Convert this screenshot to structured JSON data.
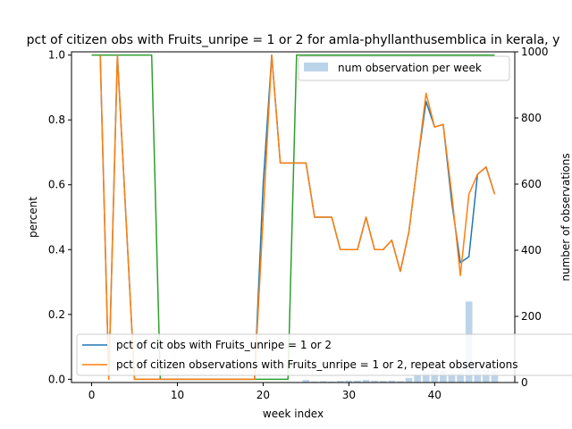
{
  "chart_data": {
    "type": "line",
    "title": "pct of citizen obs with Fruits_unripe = 1 or 2 for amla-phyllanthusemblica in kerala, y",
    "xlabel": "week index",
    "ylabel": "percent",
    "ylabel_right": "number of observations",
    "xlim": [
      -2.35,
      49.35
    ],
    "ylim": [
      -0.01,
      1.01
    ],
    "ylim_right": [
      0,
      1000
    ],
    "xticks": [
      0,
      10,
      20,
      30,
      40
    ],
    "yticks": [
      0.0,
      0.2,
      0.4,
      0.6,
      0.8,
      1.0
    ],
    "yticks_right": [
      0,
      200,
      400,
      600,
      800,
      1000
    ],
    "grid": false,
    "legend_upper": {
      "placement": "top-right",
      "entries": [
        {
          "label": "num observation per week",
          "color": "#bcd4ea",
          "kind": "bar"
        }
      ]
    },
    "legend_lower": {
      "placement": "bottom-left",
      "entries": [
        {
          "label": "pct of cit obs with Fruits_unripe = 1 or 2",
          "color": "#1f77b4",
          "kind": "line"
        },
        {
          "label": "pct of citizen observations with Fruits_unripe = 1 or 2, repeat observations",
          "color": "#ff7f0e",
          "kind": "line"
        }
      ]
    },
    "bars": {
      "name": "num observation per week",
      "color": "#bcd4ea",
      "x": [
        25,
        26,
        27,
        28,
        29,
        30,
        31,
        32,
        33,
        34,
        35,
        36,
        37,
        38,
        39,
        40,
        41,
        42,
        43,
        44,
        45,
        46,
        47
      ],
      "values": [
        8,
        3,
        4,
        3,
        5,
        6,
        6,
        8,
        6,
        5,
        6,
        4,
        14,
        25,
        32,
        38,
        36,
        28,
        32,
        245,
        40,
        38,
        35
      ]
    },
    "series": [
      {
        "name": "pct of cit obs with Fruits_unripe = 1 or 2",
        "color": "#1f77b4",
        "x": [
          1,
          2,
          3,
          4,
          5,
          6,
          7,
          8,
          9,
          10,
          11,
          12,
          13,
          14,
          15,
          16,
          17,
          18,
          19,
          20,
          21,
          22,
          23,
          24,
          25,
          26,
          27,
          28,
          29,
          30,
          31,
          32,
          33,
          34,
          35,
          36,
          37,
          38,
          39,
          40,
          41,
          42,
          43,
          44,
          45,
          46,
          47
        ],
        "values": [
          1.0,
          0.0,
          1.0,
          0.5,
          0.0,
          0.0,
          0.0,
          0.0,
          0.0,
          0.0,
          0.0,
          0.0,
          0.0,
          0.0,
          0.0,
          0.0,
          0.0,
          0.0,
          0.0,
          0.6,
          1.0,
          0.667,
          0.667,
          0.667,
          0.667,
          0.5,
          0.5,
          0.5,
          0.4,
          0.4,
          0.4,
          0.5,
          0.4,
          0.4,
          0.429,
          0.333,
          0.455,
          0.667,
          0.857,
          0.778,
          0.786,
          0.545,
          0.36,
          0.378,
          0.632,
          0.655,
          0.571
        ]
      },
      {
        "name": "pct of citizen observations with Fruits_unripe = 1 or 2, repeat observations",
        "color": "#ff7f0e",
        "x": [
          1,
          2,
          3,
          4,
          5,
          6,
          7,
          8,
          9,
          10,
          11,
          12,
          13,
          14,
          15,
          16,
          17,
          18,
          19,
          20,
          21,
          22,
          23,
          24,
          25,
          26,
          27,
          28,
          29,
          30,
          31,
          32,
          33,
          34,
          35,
          36,
          37,
          38,
          39,
          40,
          41,
          42,
          43,
          44,
          45,
          46,
          47
        ],
        "values": [
          1.0,
          0.0,
          1.0,
          0.5,
          0.0,
          0.0,
          0.0,
          0.0,
          0.0,
          0.0,
          0.0,
          0.0,
          0.0,
          0.0,
          0.0,
          0.0,
          0.0,
          0.0,
          0.0,
          0.5,
          1.0,
          0.667,
          0.667,
          0.667,
          0.667,
          0.5,
          0.5,
          0.5,
          0.4,
          0.4,
          0.4,
          0.5,
          0.4,
          0.4,
          0.429,
          0.333,
          0.455,
          0.667,
          0.882,
          0.778,
          0.786,
          0.571,
          0.32,
          0.571,
          0.632,
          0.655,
          0.571
        ]
      },
      {
        "name": "",
        "color": "#2ca02c",
        "x": [
          0,
          7,
          8,
          22.9,
          23.9,
          47
        ],
        "values": [
          1.0,
          1.0,
          0.0,
          0.0,
          1.0,
          1.0
        ]
      }
    ]
  }
}
